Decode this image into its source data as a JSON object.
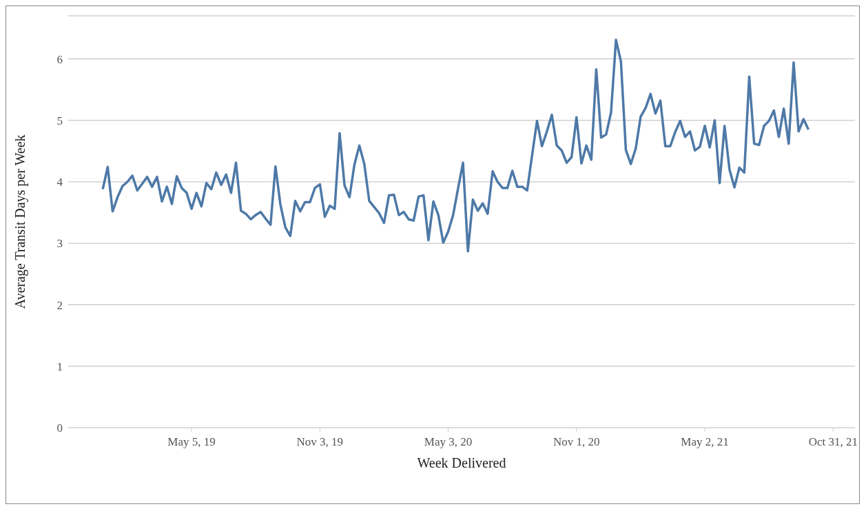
{
  "chart_data": {
    "type": "line",
    "xlabel": "Week Delivered",
    "ylabel": "Average Transit Days per Week",
    "x": [
      "2018-12-30",
      "2019-01-06",
      "2019-01-13",
      "2019-01-20",
      "2019-01-27",
      "2019-02-03",
      "2019-02-10",
      "2019-02-17",
      "2019-02-24",
      "2019-03-03",
      "2019-03-10",
      "2019-03-17",
      "2019-03-24",
      "2019-03-31",
      "2019-04-07",
      "2019-04-14",
      "2019-04-21",
      "2019-04-28",
      "2019-05-05",
      "2019-05-12",
      "2019-05-19",
      "2019-05-26",
      "2019-06-02",
      "2019-06-09",
      "2019-06-16",
      "2019-06-23",
      "2019-06-30",
      "2019-07-07",
      "2019-07-14",
      "2019-07-21",
      "2019-07-28",
      "2019-08-04",
      "2019-08-11",
      "2019-08-18",
      "2019-08-25",
      "2019-09-01",
      "2019-09-08",
      "2019-09-15",
      "2019-09-22",
      "2019-09-29",
      "2019-10-06",
      "2019-10-13",
      "2019-10-20",
      "2019-10-27",
      "2019-11-03",
      "2019-11-10",
      "2019-11-17",
      "2019-11-24",
      "2019-12-01",
      "2019-12-08",
      "2019-12-15",
      "2019-12-22",
      "2019-12-29",
      "2020-01-05",
      "2020-01-12",
      "2020-01-19",
      "2020-01-26",
      "2020-02-02",
      "2020-02-09",
      "2020-02-16",
      "2020-02-23",
      "2020-03-01",
      "2020-03-08",
      "2020-03-15",
      "2020-03-22",
      "2020-03-29",
      "2020-04-05",
      "2020-04-12",
      "2020-04-19",
      "2020-04-26",
      "2020-05-03",
      "2020-05-10",
      "2020-05-17",
      "2020-05-24",
      "2020-05-31",
      "2020-06-07",
      "2020-06-14",
      "2020-06-21",
      "2020-06-28",
      "2020-07-05",
      "2020-07-12",
      "2020-07-19",
      "2020-07-26",
      "2020-08-02",
      "2020-08-09",
      "2020-08-16",
      "2020-08-23",
      "2020-08-30",
      "2020-09-06",
      "2020-09-13",
      "2020-09-20",
      "2020-09-27",
      "2020-10-04",
      "2020-10-11",
      "2020-10-18",
      "2020-10-25",
      "2020-11-01",
      "2020-11-08",
      "2020-11-15",
      "2020-11-22",
      "2020-11-29",
      "2020-12-06",
      "2020-12-13",
      "2020-12-20",
      "2020-12-27",
      "2021-01-03",
      "2021-01-10",
      "2021-01-17",
      "2021-01-24",
      "2021-01-31",
      "2021-02-07",
      "2021-02-14",
      "2021-02-21",
      "2021-02-28",
      "2021-03-07",
      "2021-03-14",
      "2021-03-21",
      "2021-03-28",
      "2021-04-04",
      "2021-04-11",
      "2021-04-18",
      "2021-04-25",
      "2021-05-02",
      "2021-05-09",
      "2021-05-16",
      "2021-05-23",
      "2021-05-30",
      "2021-06-06",
      "2021-06-13",
      "2021-06-20",
      "2021-06-27",
      "2021-07-04",
      "2021-07-11",
      "2021-07-18",
      "2021-07-25",
      "2021-08-01",
      "2021-08-08",
      "2021-08-15",
      "2021-08-22",
      "2021-08-29",
      "2021-09-05",
      "2021-09-12",
      "2021-09-19",
      "2021-09-26"
    ],
    "series": [
      {
        "color": "#4e79a7",
        "values": [
          3.88,
          4.24,
          3.52,
          3.75,
          3.93,
          4.0,
          4.1,
          3.86,
          3.97,
          4.08,
          3.92,
          4.08,
          3.68,
          3.92,
          3.64,
          4.09,
          3.9,
          3.82,
          3.56,
          3.82,
          3.6,
          3.98,
          3.88,
          4.15,
          3.95,
          4.12,
          3.82,
          4.31,
          3.53,
          3.48,
          3.39,
          3.46,
          3.51,
          3.4,
          3.3,
          4.25,
          3.63,
          3.26,
          3.12,
          3.69,
          3.52,
          3.67,
          3.67,
          3.9,
          3.96,
          3.43,
          3.61,
          3.56,
          4.79,
          3.94,
          3.75,
          4.28,
          4.59,
          4.29,
          3.69,
          3.59,
          3.49,
          3.33,
          3.78,
          3.79,
          3.46,
          3.51,
          3.39,
          3.37,
          3.76,
          3.78,
          3.05,
          3.68,
          3.46,
          3.01,
          3.19,
          3.46,
          3.89,
          4.31,
          2.87,
          3.71,
          3.53,
          3.65,
          3.48,
          4.17,
          4.0,
          3.9,
          3.9,
          4.18,
          3.92,
          3.92,
          3.86,
          4.43,
          4.99,
          4.58,
          4.82,
          5.09,
          4.59,
          4.51,
          4.31,
          4.4,
          5.05,
          4.3,
          4.59,
          4.36,
          5.83,
          4.72,
          4.77,
          5.13,
          6.31,
          5.96,
          4.52,
          4.29,
          4.54,
          5.06,
          5.2,
          5.43,
          5.11,
          5.32,
          4.58,
          4.58,
          4.81,
          4.99,
          4.73,
          4.82,
          4.51,
          4.57,
          4.91,
          4.56,
          5.0,
          3.98,
          4.91,
          4.2,
          3.91,
          4.23,
          4.15,
          5.71,
          4.62,
          4.6,
          4.91,
          4.99,
          5.16,
          4.73,
          5.19,
          4.62,
          5.94,
          4.82,
          5.02,
          4.85
        ]
      }
    ],
    "xlim": [
      "2018-11-11",
      "2021-12-01"
    ],
    "xticks": [
      {
        "value": "2019-05-05",
        "label": "May 5, 19"
      },
      {
        "value": "2019-11-03",
        "label": "Nov 3, 19"
      },
      {
        "value": "2020-05-03",
        "label": "May 3, 20"
      },
      {
        "value": "2020-11-01",
        "label": "Nov 1, 20"
      },
      {
        "value": "2021-05-02",
        "label": "May 2, 21"
      },
      {
        "value": "2021-10-31",
        "label": "Oct 31, 21"
      }
    ],
    "ylim": [
      0,
      6.7
    ],
    "yticks": [
      0,
      1,
      2,
      3,
      4,
      5,
      6
    ],
    "grid": "y",
    "marker": "none",
    "line_style": "solid"
  }
}
